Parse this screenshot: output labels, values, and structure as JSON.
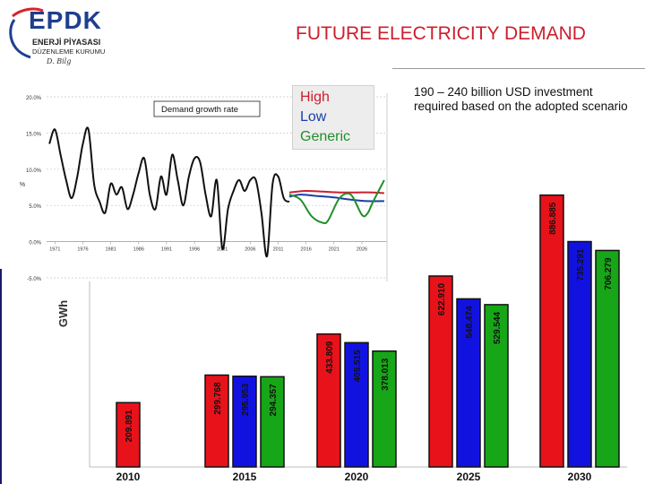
{
  "logo": {
    "main": "EPDK",
    "line1": "ENERJİ PİYASASI",
    "line2": "DÜZENLEME KURUMU",
    "signature": "D. Bilg"
  },
  "slide_title": "FUTURE ELECTRICITY DEMAND",
  "investment_note": "190 – 240 billion USD investment required based on the adopted scenario",
  "legend": [
    {
      "label": "High",
      "color": "#cc1f2d"
    },
    {
      "label": "Low",
      "color": "#1a3fa8"
    },
    {
      "label": "Generic",
      "color": "#1f8f2a"
    }
  ],
  "chart_data": [
    {
      "type": "bar",
      "ylabel": "GWh",
      "categories": [
        "2010",
        "2015",
        "2020",
        "2025",
        "2030"
      ],
      "series": [
        {
          "name": "High",
          "color": "#e8121a",
          "values": [
            209.891,
            299.768,
            433.809,
            622.91,
            886.885
          ]
        },
        {
          "name": "Low",
          "color": "#1212e0",
          "values": [
            209.891,
            295.953,
            405.515,
            548.474,
            735.291
          ]
        },
        {
          "name": "Generic",
          "color": "#17a617",
          "values": [
            209.891,
            294.357,
            378.013,
            529.544,
            706.279
          ]
        }
      ],
      "single_first": true,
      "value_labels": [
        [
          "209.891"
        ],
        [
          "299.768",
          "295.953",
          "294.357"
        ],
        [
          "433.809",
          "405.515",
          "378.013"
        ],
        [
          "622.910",
          "548.474",
          "529.544"
        ],
        [
          "886.885",
          "735.291",
          "706.279"
        ]
      ],
      "ylim": [
        0,
        1000
      ]
    },
    {
      "type": "line",
      "title_box": "Demand growth rate",
      "ylabel": "%",
      "y_ticks": [
        "20.0%",
        "15.0%",
        "10.0%",
        "5.0%",
        "0.0%",
        "-5.0%"
      ],
      "x_ticks": [
        "1971",
        "1976",
        "1981",
        "1986",
        "1991",
        "1996",
        "2001",
        "2006",
        "2011",
        "2016",
        "2021",
        "2026"
      ],
      "ylim": [
        -5,
        20
      ],
      "history": {
        "x": [
          1970,
          1971,
          1972,
          1973,
          1974,
          1975,
          1976,
          1977,
          1978,
          1979,
          1980,
          1981,
          1982,
          1983,
          1984,
          1985,
          1986,
          1987,
          1988,
          1989,
          1990,
          1991,
          1992,
          1993,
          1994,
          1995,
          1996,
          1997,
          1998,
          1999,
          2000,
          2001,
          2002,
          2003,
          2004,
          2005,
          2006,
          2007,
          2008,
          2009,
          2010,
          2011,
          2012,
          2013
        ],
        "y": [
          13.5,
          15.5,
          12.0,
          8.5,
          6.0,
          9.0,
          13.5,
          15.5,
          8.0,
          5.5,
          4.0,
          8.0,
          6.5,
          7.5,
          4.5,
          6.5,
          9.5,
          11.5,
          6.5,
          4.5,
          9.0,
          6.5,
          12.0,
          8.5,
          5.0,
          9.0,
          11.5,
          11.0,
          6.5,
          3.5,
          8.5,
          -1.0,
          4.5,
          7.0,
          8.5,
          7.0,
          8.5,
          8.5,
          4.0,
          -2.0,
          8.0,
          9.0,
          6.0,
          5.5
        ]
      },
      "scenarios": [
        {
          "name": "High",
          "color": "#cc1f2d",
          "x": [
            2013,
            2016,
            2019,
            2022,
            2025,
            2028,
            2030
          ],
          "y": [
            6.8,
            7.0,
            6.9,
            6.8,
            6.8,
            6.8,
            6.7
          ]
        },
        {
          "name": "Low",
          "color": "#1a3fa8",
          "x": [
            2013,
            2015,
            2018,
            2021,
            2024,
            2027,
            2030
          ],
          "y": [
            6.2,
            6.5,
            6.3,
            6.1,
            5.8,
            5.6,
            5.6
          ]
        },
        {
          "name": "Generic",
          "color": "#1f8f2a",
          "x": [
            2013,
            2015,
            2017,
            2019,
            2020,
            2022,
            2024,
            2026,
            2027,
            2028,
            2030
          ],
          "y": [
            6.5,
            5.8,
            3.5,
            2.6,
            3.0,
            6.0,
            6.5,
            3.7,
            3.9,
            5.5,
            8.5
          ]
        }
      ]
    }
  ]
}
